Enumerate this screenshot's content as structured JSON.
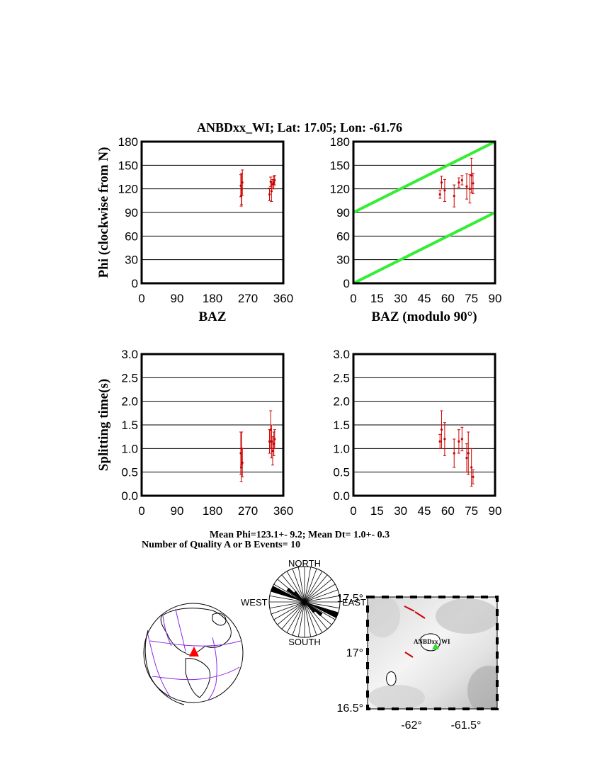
{
  "title": "ANBDxx_WI; Lat:  17.05;  Lon:  -61.76",
  "colors": {
    "data": "#cc0000",
    "reference_lines": "#33ee33",
    "station_marker": "#ff0000",
    "map_station": "#33dd33",
    "coast": "#000000",
    "plates": "#8a2be2"
  },
  "chart_data": [
    {
      "type": "scatter",
      "panel": "phi-vs-baz",
      "xlabel": "BAZ",
      "ylabel": "Phi (clockwise from N)",
      "xlim": [
        0,
        360
      ],
      "ylim": [
        0,
        180
      ],
      "xticks": [
        "0",
        "90",
        "180",
        "270",
        "360"
      ],
      "yticks": [
        "0",
        "30",
        "60",
        "90",
        "120",
        "150",
        "180"
      ],
      "grid": "horizontal",
      "points": [
        {
          "x": 252,
          "y": 124,
          "err": 14
        },
        {
          "x": 253,
          "y": 111,
          "err": 13
        },
        {
          "x": 254,
          "y": 120,
          "err": 20
        },
        {
          "x": 256,
          "y": 128,
          "err": 16
        },
        {
          "x": 325,
          "y": 113,
          "err": 8
        },
        {
          "x": 328,
          "y": 129,
          "err": 6
        },
        {
          "x": 330,
          "y": 117,
          "err": 13
        },
        {
          "x": 333,
          "y": 126,
          "err": 6
        },
        {
          "x": 336,
          "y": 128,
          "err": 8
        },
        {
          "x": 338,
          "y": 131,
          "err": 6
        }
      ]
    },
    {
      "type": "scatter",
      "panel": "phi-vs-baz-mod90",
      "xlabel": "BAZ (modulo 90°)",
      "ylabel": "",
      "xlim": [
        0,
        90
      ],
      "ylim": [
        0,
        180
      ],
      "xticks": [
        "0",
        "15",
        "30",
        "45",
        "60",
        "75",
        "90"
      ],
      "yticks": [
        "0",
        "30",
        "60",
        "90",
        "120",
        "150",
        "180"
      ],
      "grid": "horizontal",
      "reference_lines": [
        {
          "x": [
            0,
            90
          ],
          "y": [
            0,
            90
          ]
        },
        {
          "x": [
            0,
            90
          ],
          "y": [
            90,
            180
          ]
        }
      ],
      "points": [
        {
          "x": 55,
          "y": 113,
          "err": 5
        },
        {
          "x": 56,
          "y": 128,
          "err": 8
        },
        {
          "x": 58,
          "y": 118,
          "err": 14
        },
        {
          "x": 64,
          "y": 111,
          "err": 14
        },
        {
          "x": 67,
          "y": 128,
          "err": 6
        },
        {
          "x": 69,
          "y": 131,
          "err": 6
        },
        {
          "x": 72,
          "y": 123,
          "err": 16
        },
        {
          "x": 74,
          "y": 120,
          "err": 18
        },
        {
          "x": 75,
          "y": 137,
          "err": 22
        },
        {
          "x": 76,
          "y": 127,
          "err": 13
        }
      ]
    },
    {
      "type": "scatter",
      "panel": "dt-vs-baz",
      "xlabel": "",
      "ylabel": "Splitting time(s)",
      "xlim": [
        0,
        360
      ],
      "ylim": [
        0,
        3
      ],
      "xticks": [
        "0",
        "90",
        "180",
        "270",
        "360"
      ],
      "yticks": [
        "0.0",
        "0.5",
        "1.0",
        "1.5",
        "2.0",
        "2.5",
        "3.0"
      ],
      "grid": "horizontal",
      "points": [
        {
          "x": 252,
          "y": 0.9,
          "err": 0.45
        },
        {
          "x": 253,
          "y": 0.6,
          "err": 0.3
        },
        {
          "x": 254,
          "y": 1.0,
          "err": 0.35
        },
        {
          "x": 256,
          "y": 0.7,
          "err": 0.3
        },
        {
          "x": 325,
          "y": 1.15,
          "err": 0.25
        },
        {
          "x": 328,
          "y": 1.4,
          "err": 0.4
        },
        {
          "x": 330,
          "y": 1.15,
          "err": 0.35
        },
        {
          "x": 333,
          "y": 0.95,
          "err": 0.3
        },
        {
          "x": 336,
          "y": 1.1,
          "err": 0.25
        },
        {
          "x": 338,
          "y": 1.2,
          "err": 0.2
        }
      ]
    },
    {
      "type": "scatter",
      "panel": "dt-vs-baz-mod90",
      "xlabel": "",
      "ylabel": "",
      "xlim": [
        0,
        90
      ],
      "ylim": [
        0,
        3
      ],
      "xticks": [
        "0",
        "15",
        "30",
        "45",
        "60",
        "75",
        "90"
      ],
      "yticks": [
        "0.0",
        "0.5",
        "1.0",
        "1.5",
        "2.0",
        "2.5",
        "3.0"
      ],
      "grid": "horizontal",
      "points": [
        {
          "x": 55,
          "y": 1.15,
          "err": 0.15
        },
        {
          "x": 56,
          "y": 1.4,
          "err": 0.4
        },
        {
          "x": 58,
          "y": 1.2,
          "err": 0.35
        },
        {
          "x": 64,
          "y": 0.9,
          "err": 0.3
        },
        {
          "x": 67,
          "y": 1.15,
          "err": 0.25
        },
        {
          "x": 69,
          "y": 1.2,
          "err": 0.25
        },
        {
          "x": 72,
          "y": 0.8,
          "err": 0.3
        },
        {
          "x": 73,
          "y": 0.9,
          "err": 0.45
        },
        {
          "x": 75,
          "y": 0.6,
          "err": 0.4
        },
        {
          "x": 76,
          "y": 0.4,
          "err": 0.15
        }
      ]
    }
  ],
  "stats": {
    "mean_line": "Mean Phi=123.1+-  9.2; Mean Dt=  1.0+-  0.3",
    "count_line": "Number of Quality A or B Events= 10"
  },
  "rose": {
    "north": "NORTH",
    "south": "SOUTH",
    "west": "WEST",
    "east": "EAST",
    "sector_counts": [
      {
        "azimuth": 112,
        "count": 5
      },
      {
        "azimuth": 127,
        "count": 3
      },
      {
        "azimuth": 137,
        "count": 2
      }
    ]
  },
  "map": {
    "station_label": "ANBDxx_WI",
    "lat_ticks": [
      "17.5°",
      "17°",
      "16.5°"
    ],
    "lon_ticks": [
      "-62°",
      "-61.5°"
    ]
  }
}
